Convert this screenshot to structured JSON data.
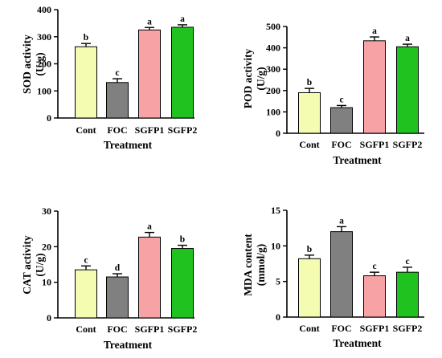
{
  "chart_data": [
    {
      "type": "bar",
      "panel": "SOD",
      "categories": [
        "Cont",
        "FOC",
        "SGFP1",
        "SGFP2"
      ],
      "values": [
        263,
        131,
        325,
        335
      ],
      "errors": [
        12,
        14,
        9,
        9
      ],
      "significance": [
        "b",
        "c",
        "a",
        "a"
      ],
      "ylabel": [
        "SOD activity",
        "(U/g)"
      ],
      "xlabel": "Treatment",
      "ylim": [
        0,
        400
      ],
      "yticks": [
        0,
        100,
        200,
        300,
        400
      ]
    },
    {
      "type": "bar",
      "panel": "POD",
      "categories": [
        "Cont",
        "FOC",
        "SGFP1",
        "SGFP2"
      ],
      "values": [
        190,
        120,
        433,
        405
      ],
      "errors": [
        20,
        10,
        18,
        12
      ],
      "significance": [
        "b",
        "c",
        "a",
        "a"
      ],
      "ylabel": [
        "POD activity",
        "(U/g)"
      ],
      "xlabel": "Treatment",
      "ylim": [
        0,
        500
      ],
      "yticks": [
        0,
        100,
        200,
        300,
        400,
        500
      ]
    },
    {
      "type": "bar",
      "panel": "CAT",
      "categories": [
        "Cont",
        "FOC",
        "SGFP1",
        "SGFP2"
      ],
      "values": [
        13.5,
        11.5,
        22.7,
        19.5
      ],
      "errors": [
        1.1,
        0.9,
        1.3,
        0.9
      ],
      "significance": [
        "c",
        "d",
        "a",
        "b"
      ],
      "ylabel": [
        "CAT activity",
        "(U/g)"
      ],
      "xlabel": "Treatment",
      "ylim": [
        0,
        30
      ],
      "yticks": [
        0,
        10,
        20,
        30
      ]
    },
    {
      "type": "bar",
      "panel": "MDA",
      "categories": [
        "Cont",
        "FOC",
        "SGFP1",
        "SGFP2"
      ],
      "values": [
        8.2,
        12.0,
        5.8,
        6.3
      ],
      "errors": [
        0.5,
        0.7,
        0.5,
        0.7
      ],
      "significance": [
        "b",
        "a",
        "c",
        "c"
      ],
      "ylabel": [
        "MDA content",
        "(mmol/g)"
      ],
      "xlabel": "Treatment",
      "ylim": [
        0,
        15
      ],
      "yticks": [
        0,
        5,
        10,
        15
      ]
    }
  ],
  "colors": {
    "Cont": "#f3fcb1",
    "FOC": "#808080",
    "SGFP1": "#f7a3a6",
    "SGFP2": "#1fc21f",
    "stroke": "#000000"
  }
}
